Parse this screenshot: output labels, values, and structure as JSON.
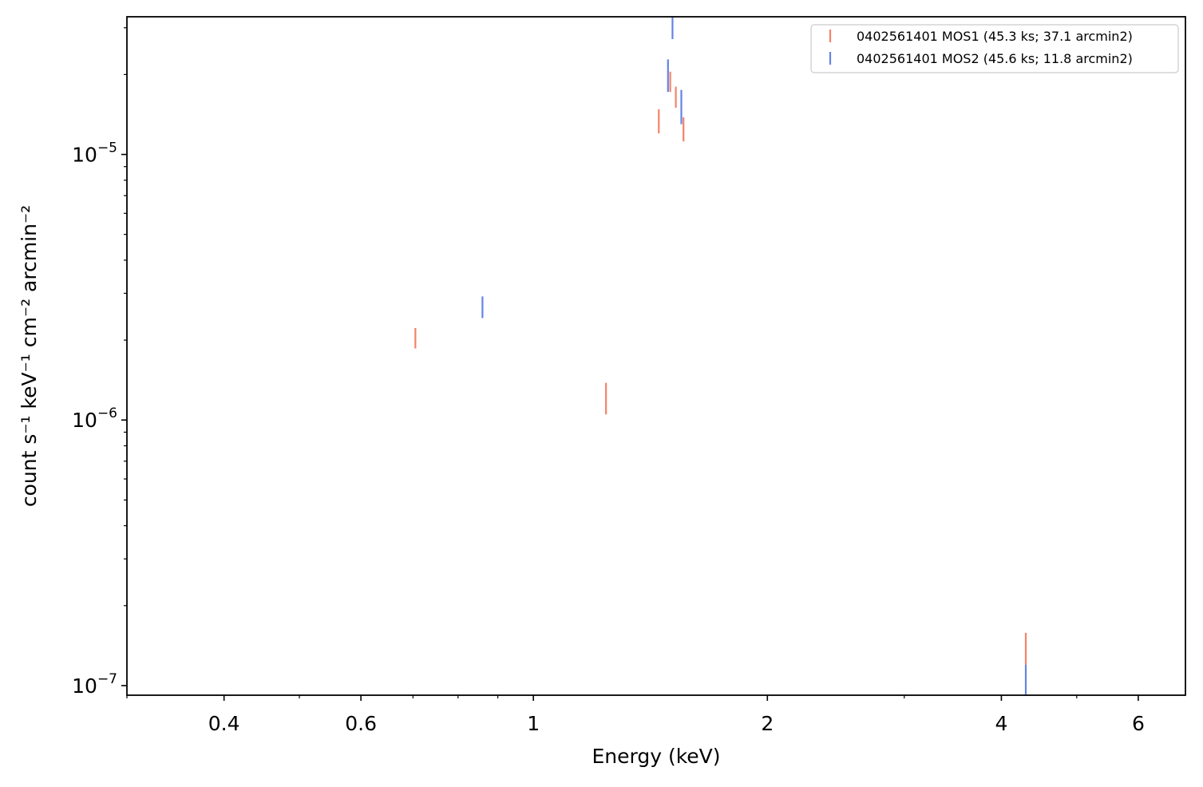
{
  "chart_data": {
    "type": "scatter",
    "title": "",
    "xlabel": "Energy (keV)",
    "ylabel": "count s⁻¹ keV⁻¹ cm⁻² arcmin⁻²",
    "x_scale": "log",
    "y_scale": "log",
    "xlim": [
      0.3,
      6.9
    ],
    "ylim": [
      9.2e-08,
      3.3e-05
    ],
    "x_major_ticks": [
      {
        "value": 0.4,
        "label": "0.4"
      },
      {
        "value": 0.6,
        "label": "0.6"
      },
      {
        "value": 1,
        "label": "1"
      },
      {
        "value": 2,
        "label": "2"
      },
      {
        "value": 4,
        "label": "4"
      },
      {
        "value": 6,
        "label": "6"
      }
    ],
    "x_minor_ticks": [
      0.3,
      0.5,
      0.7,
      0.8,
      0.9,
      3,
      5,
      7
    ],
    "y_major_ticks": [
      {
        "value": 1e-05,
        "base": "10",
        "exp": "−5"
      },
      {
        "value": 1e-06,
        "base": "10",
        "exp": "−6"
      },
      {
        "value": 1e-07,
        "base": "10",
        "exp": "−7"
      }
    ],
    "legend_position": "top-right",
    "grid": false,
    "series": [
      {
        "name": "0402561401 MOS1 (45.3 ks; 37.1 arcmin2)",
        "color": "#f4826a",
        "points": [
          {
            "x": 0.705,
            "y_low": 1.86e-06,
            "y_high": 2.22e-06
          },
          {
            "x": 1.24,
            "y_low": 1.05e-06,
            "y_high": 1.38e-06
          },
          {
            "x": 1.45,
            "y_low": 1.2e-05,
            "y_high": 1.48e-05
          },
          {
            "x": 1.5,
            "y_low": 1.72e-05,
            "y_high": 2.05e-05
          },
          {
            "x": 1.525,
            "y_low": 1.5e-05,
            "y_high": 1.8e-05
          },
          {
            "x": 1.56,
            "y_low": 1.12e-05,
            "y_high": 1.38e-05
          },
          {
            "x": 4.3,
            "y_low": 1.2e-07,
            "y_high": 1.58e-07
          }
        ]
      },
      {
        "name": "0402561401 MOS2 (45.6 ks; 11.8 arcmin2)",
        "color": "#6484e4",
        "points": [
          {
            "x": 0.86,
            "y_low": 2.42e-06,
            "y_high": 2.92e-06
          },
          {
            "x": 1.49,
            "y_low": 1.72e-05,
            "y_high": 2.28e-05
          },
          {
            "x": 1.51,
            "y_low": 2.72e-05,
            "y_high": 3.3e-05
          },
          {
            "x": 1.55,
            "y_low": 1.3e-05,
            "y_high": 1.75e-05
          },
          {
            "x": 4.3,
            "y_low": 9.2e-08,
            "y_high": 1.2e-07
          }
        ]
      }
    ]
  }
}
